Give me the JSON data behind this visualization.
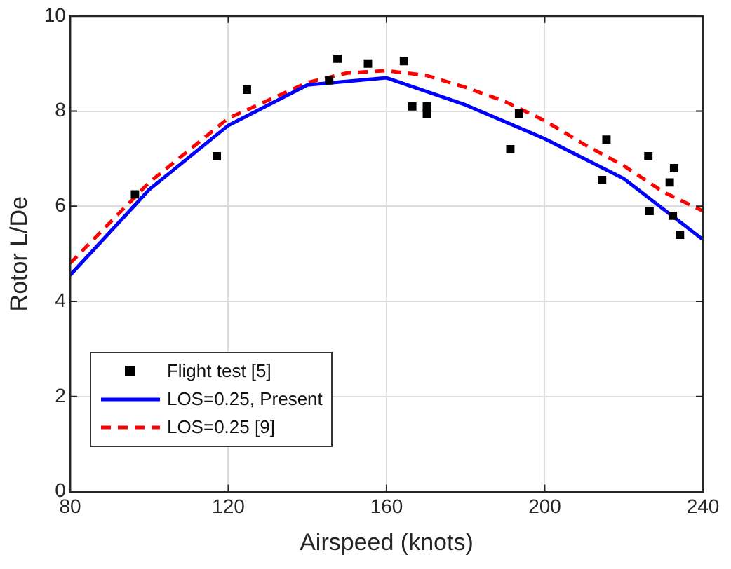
{
  "chart_data": {
    "type": "line",
    "xlabel": "Airspeed (knots)",
    "ylabel": "Rotor L/De",
    "xlim": [
      80,
      240
    ],
    "xticks": [
      80,
      120,
      160,
      200,
      240
    ],
    "ylim": [
      0,
      10
    ],
    "yticks": [
      0,
      2,
      4,
      6,
      8,
      10
    ],
    "grid": true,
    "legend": "bottom left",
    "series": [
      {
        "name": "Flight test [5]",
        "type": "scatter",
        "marker": "square",
        "color": "#000000",
        "x": [
          96.4,
          117.1,
          124.7,
          145.5,
          147.6,
          155.3,
          164.4,
          166.5,
          170.2,
          170.2,
          191.3,
          193.5,
          214.5,
          215.6,
          226.2,
          226.5,
          231.6,
          232.7,
          232.4,
          234.2
        ],
        "values": [
          6.25,
          7.05,
          8.45,
          8.65,
          9.1,
          9.0,
          9.05,
          8.1,
          8.1,
          7.95,
          7.2,
          7.95,
          6.55,
          7.4,
          7.05,
          5.9,
          6.5,
          6.8,
          5.8,
          5.4
        ]
      },
      {
        "name": "LOS=0.25, Present",
        "type": "line",
        "line_style": "solid",
        "marker": "none",
        "color": "#0000ff",
        "x": [
          80,
          100,
          120,
          140,
          160,
          180,
          200,
          220,
          240
        ],
        "values": [
          4.55,
          6.35,
          7.7,
          8.55,
          8.7,
          8.13,
          7.42,
          6.58,
          5.3
        ]
      },
      {
        "name": "LOS=0.25 [9]",
        "type": "line",
        "line_style": "dashed",
        "marker": "none",
        "color": "#ff0000",
        "x": [
          80,
          100,
          120,
          140,
          150,
          160,
          170,
          180,
          190,
          200,
          210,
          220,
          230,
          240
        ],
        "values": [
          4.8,
          6.5,
          7.85,
          8.6,
          8.8,
          8.85,
          8.75,
          8.5,
          8.2,
          7.8,
          7.3,
          6.85,
          6.3,
          5.9
        ]
      }
    ]
  }
}
